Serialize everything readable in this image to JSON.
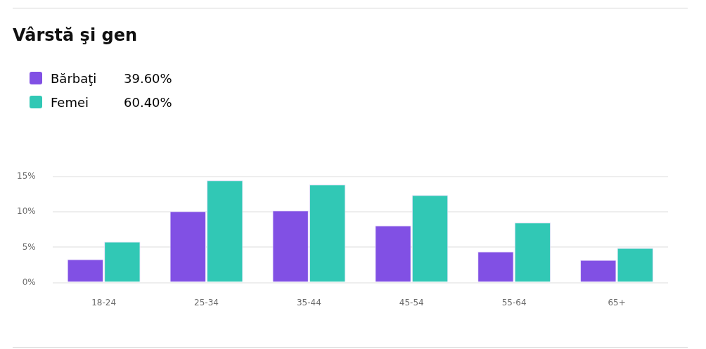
{
  "chart_data": {
    "type": "bar",
    "title": "Vârstă şi gen",
    "categories": [
      "18-24",
      "25-34",
      "35-44",
      "45-54",
      "55-64",
      "65+"
    ],
    "series": [
      {
        "name": "Bărbaţi",
        "color": "#8150e4",
        "values": [
          3.3,
          10.1,
          10.2,
          8.1,
          4.4,
          3.2
        ]
      },
      {
        "name": "Femei",
        "color": "#31c8b5",
        "values": [
          5.8,
          14.5,
          13.9,
          12.4,
          8.5,
          4.9
        ]
      }
    ],
    "annotations": [
      "39.60%",
      "60.40%"
    ],
    "ylim": [
      0,
      15
    ],
    "yticks": [
      {
        "value": 0,
        "label": "0%"
      },
      {
        "value": 5,
        "label": "5%"
      },
      {
        "value": 10,
        "label": "10%"
      },
      {
        "value": 15,
        "label": "15%"
      }
    ],
    "grid": "y",
    "legend": "top left"
  }
}
